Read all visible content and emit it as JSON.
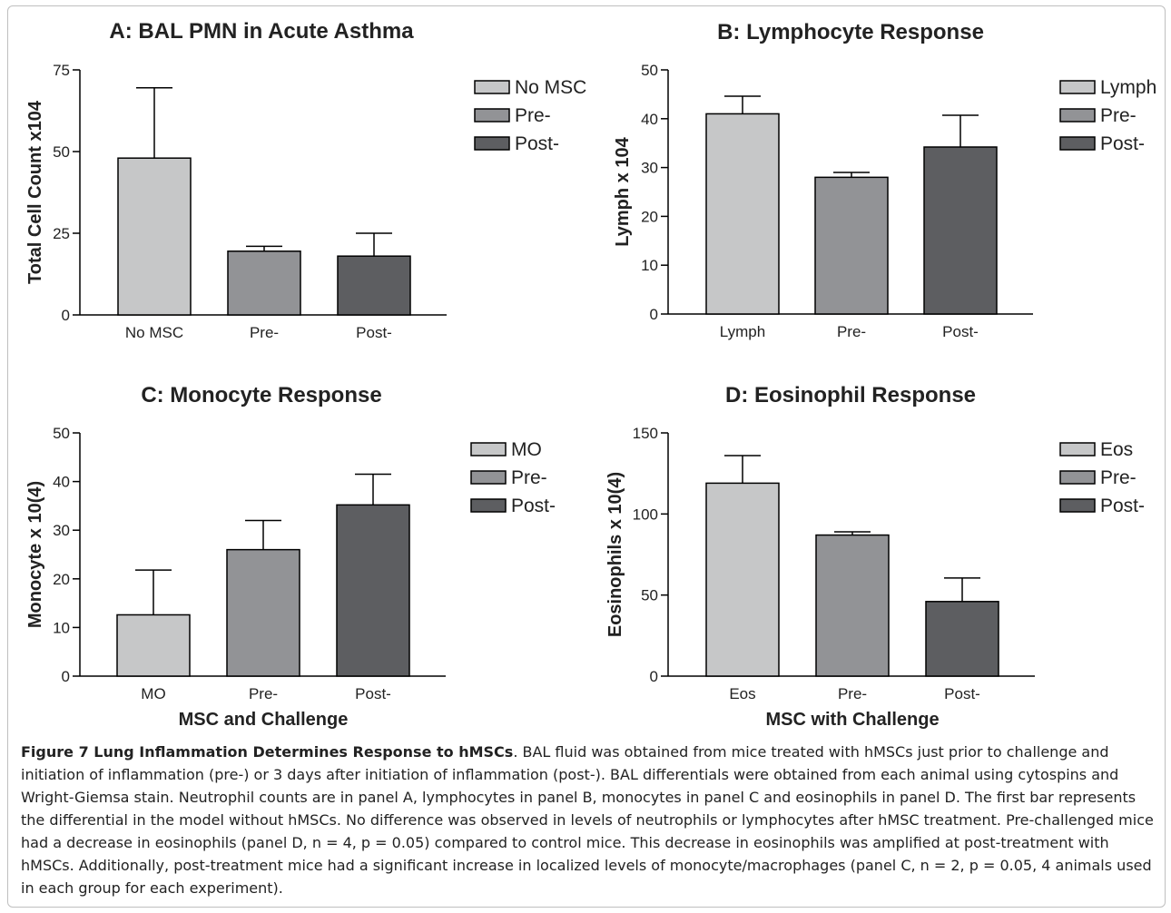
{
  "chart_data": [
    {
      "type": "bar",
      "title": "A: BAL PMN in Acute Asthma",
      "xlabel": "",
      "ylabel": "Total Cell Count x104",
      "categories": [
        "No MSC",
        "Pre-",
        "Post-"
      ],
      "values": [
        48,
        19.5,
        18
      ],
      "errors": [
        21.5,
        1.5,
        7
      ],
      "ylim": [
        0,
        75
      ],
      "yticks": [
        0,
        25,
        50,
        75
      ],
      "legend": [
        "No MSC",
        "Pre-",
        "Post-"
      ],
      "legend_position": "right",
      "grid": false
    },
    {
      "type": "bar",
      "title": "B: Lymphocyte Response",
      "xlabel": "",
      "ylabel": "Lymph x 104",
      "categories": [
        "Lymph",
        "Pre-",
        "Post-"
      ],
      "values": [
        41,
        28,
        34.2
      ],
      "errors": [
        3.6,
        1,
        6.5
      ],
      "ylim": [
        0,
        50
      ],
      "yticks": [
        0,
        10,
        20,
        30,
        40,
        50
      ],
      "legend": [
        "Lymph",
        "Pre-",
        "Post-"
      ],
      "legend_position": "right",
      "grid": false
    },
    {
      "type": "bar",
      "title": "C: Monocyte Response",
      "xlabel": "MSC and Challenge",
      "ylabel": "Monocyte x 10(4)",
      "categories": [
        "MO",
        "Pre-",
        "Post-"
      ],
      "values": [
        12.6,
        26,
        35.2
      ],
      "errors": [
        9.2,
        6,
        6.3
      ],
      "ylim": [
        0,
        50
      ],
      "yticks": [
        0,
        10,
        20,
        30,
        40,
        50
      ],
      "legend": [
        "MO",
        "Pre-",
        "Post-"
      ],
      "legend_position": "right",
      "grid": false
    },
    {
      "type": "bar",
      "title": "D: Eosinophil Response",
      "xlabel": "MSC with Challenge",
      "ylabel": "Eosinophils x 10(4)",
      "categories": [
        "Eos",
        "Pre-",
        "Post-"
      ],
      "values": [
        119,
        87,
        46
      ],
      "errors": [
        17,
        2,
        14.5
      ],
      "ylim": [
        0,
        150
      ],
      "yticks": [
        0,
        50,
        100,
        150
      ],
      "legend": [
        "Eos",
        "Pre-",
        "Post-"
      ],
      "legend_position": "right",
      "grid": false
    }
  ],
  "colors": {
    "bar_fills": [
      "#c6c7c8",
      "#929396",
      "#5d5e61"
    ],
    "stroke": "#000000",
    "text": "#222222"
  },
  "caption": {
    "label": "Figure 7 Lung Inflammation Determines Response to hMSCs",
    "text": ". BAL fluid was obtained from mice treated with hMSCs just prior to challenge and initiation of inflammation (pre-) or 3 days after initiation of inflammation (post-). BAL differentials were obtained from each animal using cytospins and Wright-Giemsa stain. Neutrophil counts are in panel A, lymphocytes in panel B, monocytes in panel C and eosinophils in panel D. The first bar represents the differential in the model without hMSCs. No difference was observed in levels of neutrophils or lymphocytes after hMSC treatment. Pre-challenged mice had a decrease in eosinophils (panel D, n = 4, p = 0.05) compared to control mice. This decrease in eosinophils was amplified at post-treatment with hMSCs. Additionally, post-treatment mice had a significant increase in localized levels of monocyte/macrophages (panel C, n = 2, p = 0.05, 4 animals used in each group for each experiment)."
  }
}
